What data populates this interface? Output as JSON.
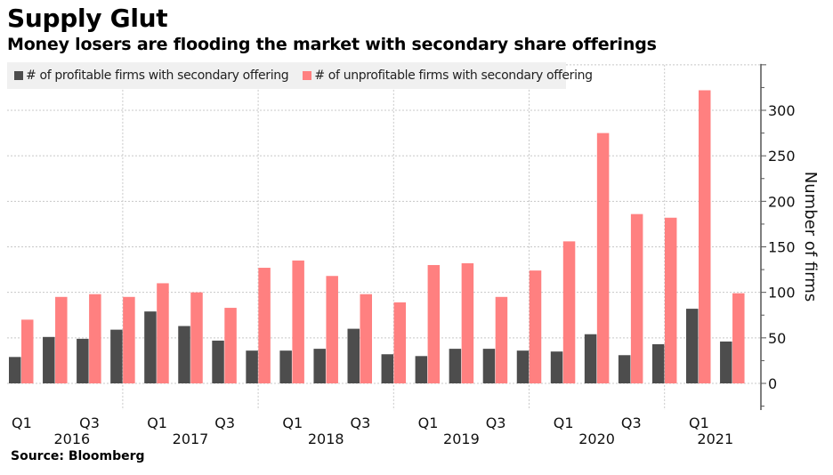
{
  "header": {
    "title": "Supply Glut",
    "subtitle": "Money losers are flooding the market with secondary share offerings"
  },
  "footer": {
    "source": "Source: Bloomberg"
  },
  "chart_data": {
    "type": "bar",
    "title": "Supply Glut",
    "subtitle": "Money losers are flooding the market with secondary share offerings",
    "xlabel": "",
    "ylabel": "Number of firms",
    "y_axis_side": "right",
    "ylim": [
      -25,
      350
    ],
    "yticks": [
      0,
      50,
      100,
      150,
      200,
      250,
      300
    ],
    "grid": true,
    "legend_position": "top-left",
    "categories": [
      "2016 Q1",
      "2016 Q2",
      "2016 Q3",
      "2016 Q4",
      "2017 Q1",
      "2017 Q2",
      "2017 Q3",
      "2017 Q4",
      "2018 Q1",
      "2018 Q2",
      "2018 Q3",
      "2018 Q4",
      "2019 Q1",
      "2019 Q2",
      "2019 Q3",
      "2019 Q4",
      "2020 Q1",
      "2020 Q2",
      "2020 Q3",
      "2020 Q4",
      "2021 Q1",
      "2021 Q2"
    ],
    "x_tick_labels": [
      {
        "index": 0,
        "quarter": "Q1"
      },
      {
        "index": 2,
        "quarter": "Q3"
      },
      {
        "index": 4,
        "quarter": "Q1"
      },
      {
        "index": 6,
        "quarter": "Q3"
      },
      {
        "index": 8,
        "quarter": "Q1"
      },
      {
        "index": 10,
        "quarter": "Q3"
      },
      {
        "index": 12,
        "quarter": "Q1"
      },
      {
        "index": 14,
        "quarter": "Q3"
      },
      {
        "index": 16,
        "quarter": "Q1"
      },
      {
        "index": 18,
        "quarter": "Q3"
      },
      {
        "index": 20,
        "quarter": "Q1"
      }
    ],
    "year_labels": [
      {
        "label": "2016",
        "center_index": 1.5
      },
      {
        "label": "2017",
        "center_index": 5
      },
      {
        "label": "2018",
        "center_index": 9
      },
      {
        "label": "2019",
        "center_index": 13
      },
      {
        "label": "2020",
        "center_index": 17
      },
      {
        "label": "2021",
        "center_index": 20.5
      }
    ],
    "series": [
      {
        "name": "# of profitable firms with secondary offering",
        "color": "#4d4d4d",
        "values": [
          29,
          51,
          49,
          59,
          79,
          63,
          47,
          36,
          36,
          38,
          60,
          32,
          30,
          38,
          38,
          36,
          35,
          54,
          31,
          43,
          82,
          46
        ]
      },
      {
        "name": "# of unprofitable firms with secondary offering",
        "color": "#ff8080",
        "values": [
          70,
          95,
          98,
          95,
          110,
          100,
          83,
          127,
          135,
          118,
          98,
          89,
          130,
          132,
          95,
          124,
          156,
          275,
          186,
          182,
          322,
          99
        ]
      }
    ]
  }
}
